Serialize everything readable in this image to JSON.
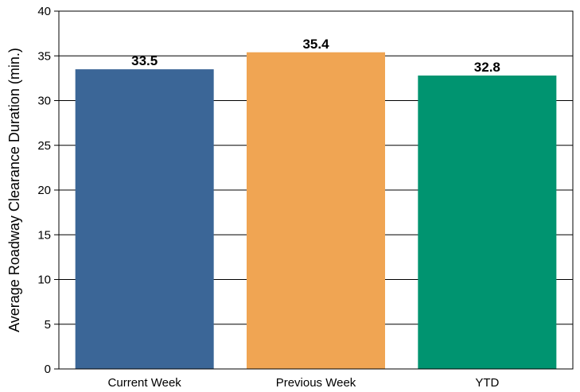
{
  "chart_data": {
    "type": "bar",
    "title": "",
    "xlabel": "",
    "ylabel": "Average Roadway Clearance Duration (min.)",
    "categories": [
      "Current Week",
      "Previous Week",
      "YTD"
    ],
    "values": [
      33.5,
      35.4,
      32.8
    ],
    "value_labels": [
      "33.5",
      "35.4",
      "32.8"
    ],
    "colors": [
      "#3b6697",
      "#f0a553",
      "#009470"
    ],
    "ylim": [
      0,
      40
    ],
    "yticks": [
      0,
      5,
      10,
      15,
      20,
      25,
      30,
      35,
      40
    ],
    "grid": true,
    "legend": "none"
  }
}
